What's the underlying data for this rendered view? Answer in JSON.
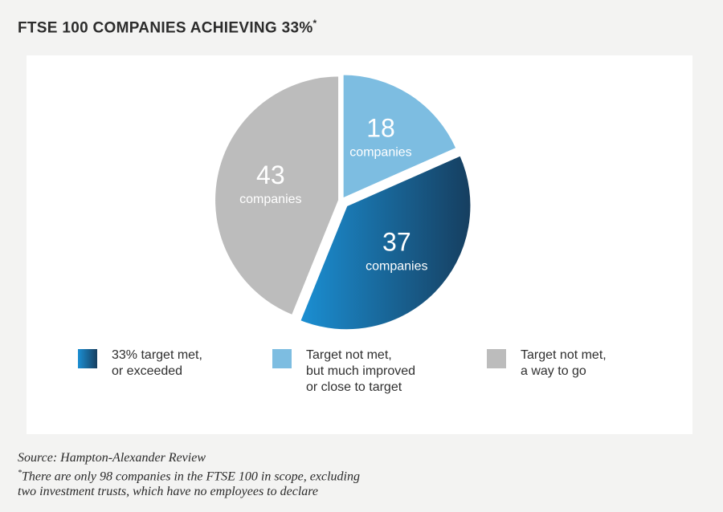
{
  "header": {
    "title": "FTSE 100 COMPANIES ACHIEVING 33%",
    "title_marker": "*"
  },
  "chart_data": {
    "type": "pie",
    "title": "FTSE 100 COMPANIES ACHIEVING 33%*",
    "slices": [
      {
        "value": 18,
        "unit": "companies",
        "legend": "Target not met,\nbut much improved\nor close to target",
        "color": "#7dbde1"
      },
      {
        "value": 37,
        "unit": "companies",
        "legend": "33% target met,\nor exceeded",
        "color": "#1b8fd3",
        "color_end": "#163e5f"
      },
      {
        "value": 43,
        "unit": "companies",
        "legend": "Target not met,\na way to go",
        "color": "#bcbcbc"
      }
    ],
    "legend_order": [
      1,
      0,
      2
    ],
    "legend_placement": "bottom"
  },
  "footnote": {
    "source": "Source: Hampton-Alexander Review",
    "note_marker": "*",
    "note_line1": "There are only 98 companies in the FTSE 100 in scope, excluding",
    "note_line2": "two investment trusts, which have no employees to declare"
  }
}
